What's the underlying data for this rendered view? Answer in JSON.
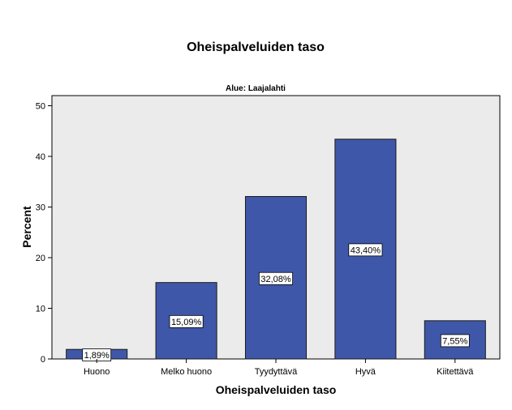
{
  "chart_data": {
    "type": "bar",
    "title": "Oheispalveluiden taso",
    "subtitle": "Alue: Laajalahti",
    "xlabel": "Oheispalveluiden taso",
    "ylabel": "Percent",
    "categories": [
      "Huono",
      "Melko huono",
      "Tyydyttävä",
      "Hyvä",
      "Kiitettävä"
    ],
    "values": [
      1.89,
      15.09,
      32.08,
      43.4,
      7.55
    ],
    "data_labels": [
      "1,89%",
      "15,09%",
      "32,08%",
      "43,40%",
      "7,55%"
    ],
    "yticks": [
      0,
      10,
      20,
      30,
      40,
      50
    ],
    "ylim": [
      0,
      52
    ],
    "grid": false,
    "colors": {
      "bar_fill": "#3f57a8",
      "bar_stroke": "#1a1a1a",
      "plot_background": "#ebebeb",
      "page_background": "#ffffff"
    }
  }
}
